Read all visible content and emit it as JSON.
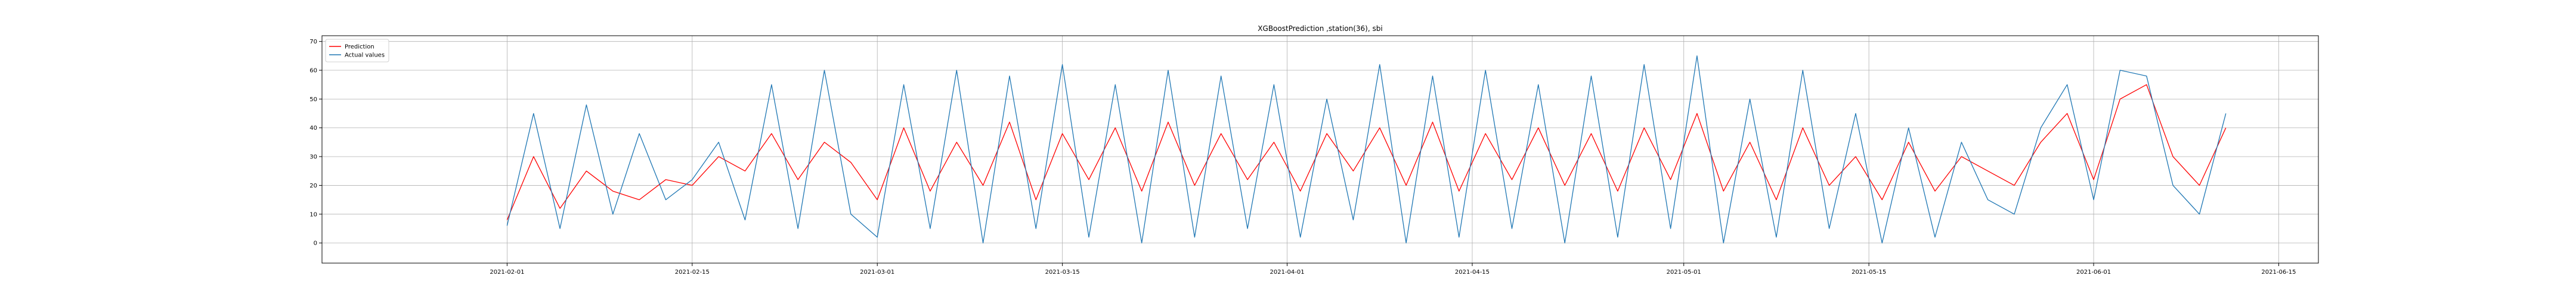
{
  "chart_data": {
    "type": "line",
    "title": "XGBoostPrediction ,station(36), sbi",
    "xlabel": "",
    "ylabel": "",
    "xlim": [
      "2021-01-18",
      "2021-06-18"
    ],
    "ylim": [
      -7,
      72
    ],
    "grid": true,
    "legend_position": "top-left",
    "x_ticks": [
      "2021-02-01",
      "2021-02-15",
      "2021-03-01",
      "2021-03-15",
      "2021-04-01",
      "2021-04-15",
      "2021-05-01",
      "2021-05-15",
      "2021-06-01",
      "2021-06-15"
    ],
    "y_ticks": [
      0,
      10,
      20,
      30,
      40,
      50,
      60,
      70
    ],
    "x": [
      "2021-02-01",
      "2021-02-03",
      "2021-02-05",
      "2021-02-07",
      "2021-02-09",
      "2021-02-11",
      "2021-02-13",
      "2021-02-15",
      "2021-02-17",
      "2021-02-19",
      "2021-02-21",
      "2021-02-23",
      "2021-02-25",
      "2021-02-27",
      "2021-03-01",
      "2021-03-03",
      "2021-03-05",
      "2021-03-07",
      "2021-03-09",
      "2021-03-11",
      "2021-03-13",
      "2021-03-15",
      "2021-03-17",
      "2021-03-19",
      "2021-03-21",
      "2021-03-23",
      "2021-03-25",
      "2021-03-27",
      "2021-03-29",
      "2021-03-31",
      "2021-04-02",
      "2021-04-04",
      "2021-04-06",
      "2021-04-08",
      "2021-04-10",
      "2021-04-12",
      "2021-04-14",
      "2021-04-16",
      "2021-04-18",
      "2021-04-20",
      "2021-04-22",
      "2021-04-24",
      "2021-04-26",
      "2021-04-28",
      "2021-04-30",
      "2021-05-02",
      "2021-05-04",
      "2021-05-06",
      "2021-05-08",
      "2021-05-10",
      "2021-05-12",
      "2021-05-14",
      "2021-05-16",
      "2021-05-18",
      "2021-05-20",
      "2021-05-22",
      "2021-05-24",
      "2021-05-26",
      "2021-05-28",
      "2021-05-30",
      "2021-06-01",
      "2021-06-03",
      "2021-06-05",
      "2021-06-07",
      "2021-06-09",
      "2021-06-11"
    ],
    "series": [
      {
        "name": "Prediction",
        "color": "#ff0000",
        "values": [
          8,
          30,
          12,
          25,
          18,
          15,
          22,
          20,
          30,
          25,
          38,
          22,
          35,
          28,
          15,
          40,
          18,
          35,
          20,
          42,
          15,
          38,
          22,
          40,
          18,
          42,
          20,
          38,
          22,
          35,
          18,
          38,
          25,
          40,
          20,
          42,
          18,
          38,
          22,
          40,
          20,
          38,
          18,
          40,
          22,
          45,
          18,
          35,
          15,
          40,
          20,
          30,
          15,
          35,
          18,
          30,
          25,
          20,
          35,
          45,
          22,
          50,
          55,
          30,
          20,
          40
        ]
      },
      {
        "name": "Actual values",
        "color": "#1f77b4",
        "values": [
          6,
          45,
          5,
          48,
          10,
          38,
          15,
          22,
          35,
          8,
          55,
          5,
          60,
          10,
          2,
          55,
          5,
          60,
          0,
          58,
          5,
          62,
          2,
          55,
          0,
          60,
          2,
          58,
          5,
          55,
          2,
          50,
          8,
          62,
          0,
          58,
          2,
          60,
          5,
          55,
          0,
          58,
          2,
          62,
          5,
          65,
          0,
          50,
          2,
          60,
          5,
          45,
          0,
          40,
          2,
          35,
          15,
          10,
          40,
          55,
          15,
          60,
          58,
          20,
          10,
          45
        ]
      }
    ]
  }
}
